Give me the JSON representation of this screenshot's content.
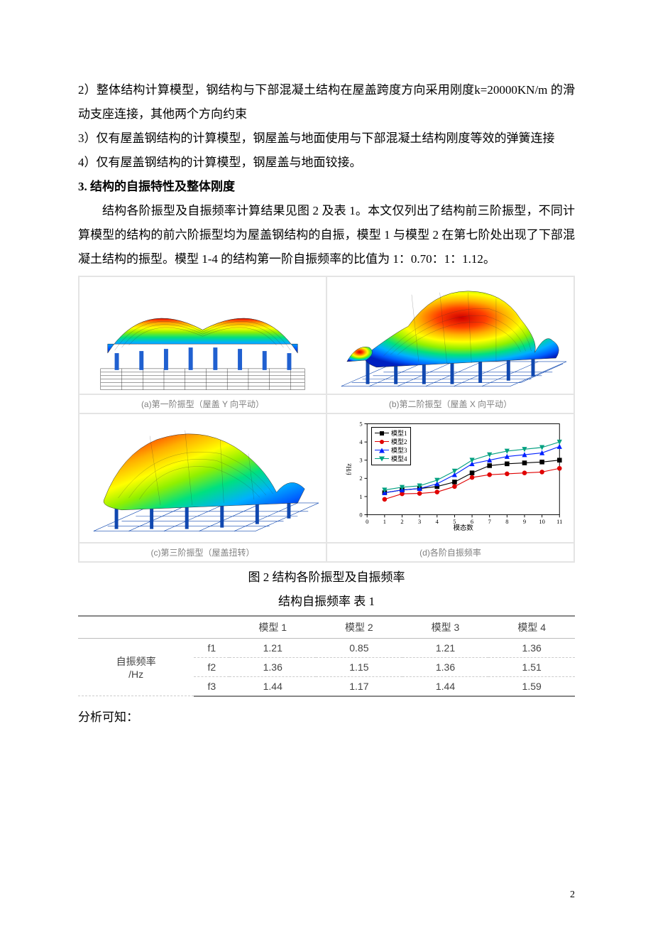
{
  "paragraphs": {
    "p2": "2）整体结构计算模型，钢结构与下部混凝土结构在屋盖跨度方向采用刚度k=20000KN/m 的滑动支座连接，其他两个方向约束",
    "p3_a": "3）仅有屋盖钢结构的计算模型，钢屋盖与地面使用与下部混凝土结构刚度等效的弹簧连接",
    "p4": "4）仅有屋盖钢结构的计算模型，钢屋盖与地面铰接。",
    "h3": "3. 结构的自振特性及整体刚度",
    "body1": "结构各阶振型及自振频率计算结果见图 2 及表 1。本文仅列出了结构前三阶振型，不同计算模型的结构的前六阶振型均为屋盖钢结构的自振，模型 1 与模型 2 在第七阶处出现了下部混凝土结构的振型。模型 1-4 的结构第一阶自振频率的比值为 1：0.70：1：1.12。",
    "fig_caption": "图 2 结构各阶振型及自振频率",
    "tbl_caption": "结构自振频率 表 1",
    "after_table": "分析可知：",
    "page_number": "2"
  },
  "figure_panels": {
    "a": "(a)第一阶振型（屋盖 Y 向平动）",
    "b": "(b)第二阶振型（屋盖 X 向平动）",
    "c": "(c)第三阶振型（屋盖扭转）",
    "d": "(d)各阶自振频率"
  },
  "mode_shape_style": {
    "rainbow_stops": [
      "#0020c0",
      "#0060ff",
      "#00b0ff",
      "#00e080",
      "#90f000",
      "#ffff00",
      "#ffb000",
      "#ff4000",
      "#d00000"
    ],
    "sub_structure_color": "#2060d0",
    "ground_grid_color": "#3a3a3a",
    "base_plate_color": "#8098c0",
    "support_color": "#1048b0",
    "mesh_line_color": "#333333",
    "background": "#ffffff"
  },
  "chart_d": {
    "type": "line",
    "xlabel": "模态数",
    "ylabel": "f/Hz",
    "xlim": [
      0,
      11
    ],
    "ylim": [
      0,
      5
    ],
    "xtick_step": 1,
    "ytick_step": 1,
    "axis_color": "#000000",
    "tick_fontsize": 9,
    "label_fontsize": 10,
    "background": "#ffffff",
    "series": [
      {
        "name": "模型1",
        "color": "#000000",
        "marker": "square",
        "values": [
          1.21,
          1.36,
          1.44,
          1.55,
          1.8,
          2.3,
          2.7,
          2.8,
          2.85,
          2.9,
          3.0
        ]
      },
      {
        "name": "模型2",
        "color": "#e00000",
        "marker": "circle",
        "values": [
          0.85,
          1.15,
          1.17,
          1.25,
          1.55,
          2.05,
          2.2,
          2.25,
          2.3,
          2.35,
          2.55
        ]
      },
      {
        "name": "模型3",
        "color": "#0020ff",
        "marker": "triangle",
        "values": [
          1.21,
          1.36,
          1.44,
          1.7,
          2.2,
          2.8,
          3.0,
          3.2,
          3.3,
          3.4,
          3.75
        ]
      },
      {
        "name": "模型4",
        "color": "#00a080",
        "marker": "invtri",
        "values": [
          1.36,
          1.51,
          1.59,
          1.9,
          2.4,
          3.0,
          3.3,
          3.5,
          3.6,
          3.7,
          4.0
        ]
      }
    ],
    "legend_labels": [
      "模型1",
      "模型2",
      "模型3",
      "模型4"
    ]
  },
  "table1": {
    "columns": [
      "",
      "",
      "模型 1",
      "模型 2",
      "模型 3",
      "模型 4"
    ],
    "row_header_label": "自振频率\n/Hz",
    "rows": [
      {
        "key": "f1",
        "cells": [
          "1.21",
          "0.85",
          "1.21",
          "1.36"
        ]
      },
      {
        "key": "f2",
        "cells": [
          "1.36",
          "1.15",
          "1.36",
          "1.51"
        ]
      },
      {
        "key": "f3",
        "cells": [
          "1.44",
          "1.17",
          "1.44",
          "1.59"
        ]
      }
    ],
    "header_font_family": "Microsoft YaHei",
    "cell_fontsize": 14,
    "border_thick_color": "#888888",
    "border_thin_color": "#bbbbbb",
    "border_dash_color": "#cccccc"
  }
}
